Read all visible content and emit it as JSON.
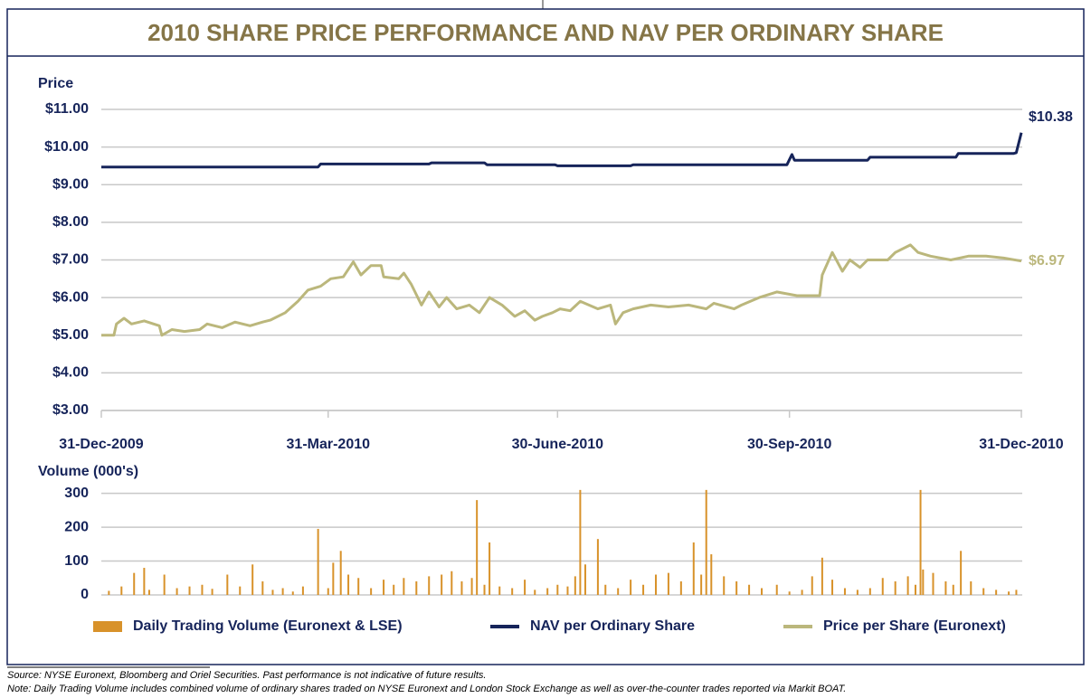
{
  "title": "2010 SHARE PRICE PERFORMANCE AND NAV PER ORDINARY SHARE",
  "chart_data": [
    {
      "type": "line",
      "ylabel": "Price",
      "xlim": [
        0,
        365
      ],
      "ylim": [
        3,
        11
      ],
      "xticks": [
        {
          "value": 0,
          "label": "31-Dec-2009"
        },
        {
          "value": 90,
          "label": "31-Mar-2010"
        },
        {
          "value": 181,
          "label": "30-June-2010"
        },
        {
          "value": 273,
          "label": "30-Sep-2010"
        },
        {
          "value": 365,
          "label": "31-Dec-2010"
        }
      ],
      "yticks": [
        {
          "value": 3,
          "label": "$3.00"
        },
        {
          "value": 4,
          "label": "$4.00"
        },
        {
          "value": 5,
          "label": "$5.00"
        },
        {
          "value": 6,
          "label": "$6.00"
        },
        {
          "value": 7,
          "label": "$7.00"
        },
        {
          "value": 8,
          "label": "$8.00"
        },
        {
          "value": 9,
          "label": "$9.00"
        },
        {
          "value": 10,
          "label": "$10.00"
        },
        {
          "value": 11,
          "label": "$11.00"
        }
      ],
      "grid": true,
      "series": [
        {
          "name": "NAV per Ordinary Share",
          "color": "#16245a",
          "end_label": "$10.38",
          "x": [
            0,
            86,
            87,
            130,
            131,
            152,
            153,
            180,
            181,
            210,
            211,
            272,
            274,
            275,
            304,
            305,
            339,
            340,
            362,
            363,
            365
          ],
          "values": [
            9.47,
            9.47,
            9.55,
            9.55,
            9.58,
            9.58,
            9.53,
            9.53,
            9.5,
            9.5,
            9.53,
            9.53,
            9.8,
            9.65,
            9.65,
            9.73,
            9.73,
            9.83,
            9.83,
            9.85,
            10.38
          ]
        },
        {
          "name": "Price per Share (Euronext)",
          "color": "#bbb77c",
          "end_label": "$6.97",
          "x": [
            0,
            5,
            6,
            9,
            12,
            17,
            23,
            24,
            28,
            33,
            39,
            42,
            48,
            53,
            59,
            64,
            67,
            73,
            78,
            82,
            87,
            91,
            96,
            100,
            103,
            107,
            111,
            112,
            118,
            120,
            123,
            127,
            130,
            134,
            137,
            141,
            146,
            150,
            154,
            159,
            164,
            168,
            172,
            175,
            179,
            182,
            186,
            190,
            197,
            202,
            204,
            207,
            211,
            218,
            225,
            233,
            240,
            243,
            251,
            254,
            261,
            268,
            276,
            285,
            286,
            290,
            294,
            297,
            301,
            304,
            312,
            315,
            321,
            324,
            329,
            337,
            344,
            351,
            358,
            365
          ],
          "values": [
            5.0,
            5.0,
            5.3,
            5.45,
            5.3,
            5.38,
            5.25,
            5.0,
            5.15,
            5.1,
            5.15,
            5.3,
            5.2,
            5.35,
            5.25,
            5.35,
            5.4,
            5.6,
            5.9,
            6.2,
            6.3,
            6.5,
            6.55,
            6.95,
            6.6,
            6.85,
            6.85,
            6.55,
            6.5,
            6.65,
            6.35,
            5.8,
            6.15,
            5.75,
            6.0,
            5.7,
            5.8,
            5.6,
            6.0,
            5.8,
            5.5,
            5.65,
            5.4,
            5.5,
            5.6,
            5.7,
            5.65,
            5.9,
            5.7,
            5.8,
            5.3,
            5.6,
            5.7,
            5.8,
            5.75,
            5.8,
            5.7,
            5.85,
            5.7,
            5.8,
            6.0,
            6.15,
            6.05,
            6.05,
            6.6,
            7.2,
            6.7,
            7.0,
            6.8,
            7.0,
            7.0,
            7.2,
            7.4,
            7.2,
            7.1,
            7.0,
            7.1,
            7.1,
            7.05,
            6.97
          ]
        }
      ]
    },
    {
      "type": "bar",
      "ylabel": "Volume (000's)",
      "xlim": [
        0,
        365
      ],
      "ylim": [
        0,
        315
      ],
      "yticks": [
        0,
        100,
        200,
        300
      ],
      "grid": true,
      "series": [
        {
          "name": "Daily Trading Volume (Euronext & LSE)",
          "color": "#d8922a",
          "x": [
            3,
            8,
            13,
            17,
            19,
            25,
            30,
            35,
            40,
            44,
            50,
            55,
            60,
            64,
            68,
            72,
            76,
            80,
            86,
            90,
            92,
            95,
            98,
            102,
            107,
            112,
            116,
            120,
            125,
            130,
            135,
            139,
            143,
            147,
            149,
            152,
            154,
            158,
            163,
            168,
            172,
            177,
            181,
            185,
            188,
            190,
            192,
            197,
            200,
            205,
            210,
            215,
            220,
            225,
            230,
            235,
            238,
            240,
            242,
            247,
            252,
            257,
            262,
            268,
            273,
            278,
            282,
            286,
            290,
            295,
            300,
            305,
            310,
            315,
            320,
            323,
            325,
            326,
            330,
            335,
            338,
            341,
            345,
            350,
            355,
            360,
            363
          ],
          "values": [
            12,
            25,
            65,
            80,
            15,
            60,
            20,
            25,
            30,
            18,
            60,
            25,
            90,
            40,
            15,
            20,
            10,
            25,
            195,
            20,
            95,
            130,
            60,
            50,
            20,
            45,
            30,
            50,
            40,
            55,
            60,
            70,
            40,
            50,
            280,
            30,
            155,
            25,
            20,
            45,
            15,
            20,
            30,
            25,
            55,
            310,
            90,
            165,
            30,
            20,
            45,
            30,
            60,
            65,
            40,
            155,
            60,
            310,
            120,
            55,
            40,
            30,
            20,
            30,
            10,
            15,
            55,
            110,
            45,
            20,
            15,
            20,
            50,
            40,
            55,
            30,
            310,
            75,
            65,
            40,
            30,
            130,
            40,
            20,
            15,
            10,
            15
          ]
        }
      ]
    }
  ],
  "notes": [
    "Source: NYSE Euronext, Bloomberg and Oriel Securities. Past performance is not indicative of future results.",
    "Note: Daily Trading Volume includes combined volume of ordinary shares traded on NYSE Euronext and London Stock Exchange as well as over-the-counter trades reported via Markit BOAT."
  ]
}
